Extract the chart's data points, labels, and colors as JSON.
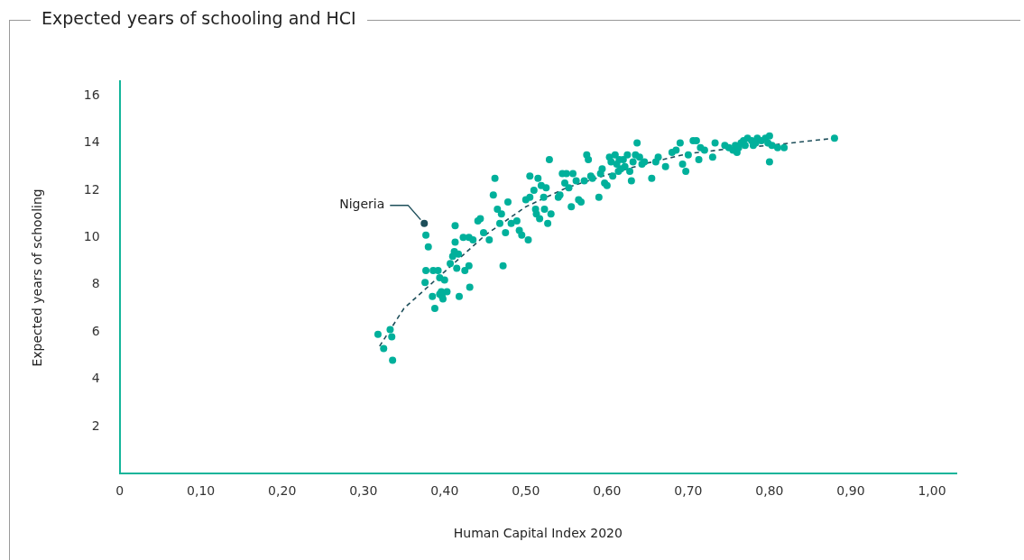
{
  "chart_data": {
    "type": "scatter",
    "title": "Expected years of schooling and HCI",
    "xlabel": "Human Capital Index 2020",
    "ylabel": "Expected years of schooling",
    "xlim": [
      0,
      1.03
    ],
    "ylim": [
      0,
      16.6
    ],
    "xticks": [
      {
        "value": 0,
        "label": "0"
      },
      {
        "value": 0.1,
        "label": "0,10"
      },
      {
        "value": 0.2,
        "label": "0,20"
      },
      {
        "value": 0.3,
        "label": "0,30"
      },
      {
        "value": 0.4,
        "label": "0,40"
      },
      {
        "value": 0.5,
        "label": "0,50"
      },
      {
        "value": 0.6,
        "label": "0,60"
      },
      {
        "value": 0.7,
        "label": "0,70"
      },
      {
        "value": 0.8,
        "label": "0,80"
      },
      {
        "value": 0.9,
        "label": "0,90"
      },
      {
        "value": 1.0,
        "label": "1,00"
      }
    ],
    "yticks": [
      2,
      4,
      6,
      8,
      10,
      12,
      14,
      16
    ],
    "grid": false,
    "legend": false,
    "marker": "circle",
    "annotations": [
      {
        "text": "Nigeria",
        "x": 0.375,
        "y": 10.6
      }
    ],
    "series": [
      {
        "type": "scatter",
        "color": "#00b09b",
        "x": [
          0.318,
          0.325,
          0.333,
          0.335,
          0.336,
          0.377,
          0.38,
          0.377,
          0.376,
          0.386,
          0.385,
          0.388,
          0.392,
          0.394,
          0.394,
          0.397,
          0.398,
          0.4,
          0.396,
          0.403,
          0.407,
          0.41,
          0.412,
          0.413,
          0.413,
          0.415,
          0.417,
          0.418,
          0.423,
          0.425,
          0.43,
          0.43,
          0.431,
          0.435,
          0.441,
          0.444,
          0.448,
          0.455,
          0.46,
          0.462,
          0.465,
          0.468,
          0.47,
          0.472,
          0.475,
          0.478,
          0.482,
          0.489,
          0.492,
          0.495,
          0.5,
          0.503,
          0.505,
          0.505,
          0.51,
          0.512,
          0.513,
          0.515,
          0.517,
          0.519,
          0.522,
          0.523,
          0.525,
          0.527,
          0.529,
          0.531,
          0.54,
          0.542,
          0.545,
          0.548,
          0.55,
          0.553,
          0.556,
          0.558,
          0.562,
          0.565,
          0.568,
          0.572,
          0.575,
          0.577,
          0.58,
          0.582,
          0.59,
          0.592,
          0.594,
          0.597,
          0.6,
          0.603,
          0.605,
          0.607,
          0.61,
          0.612,
          0.614,
          0.615,
          0.617,
          0.62,
          0.622,
          0.625,
          0.628,
          0.63,
          0.632,
          0.635,
          0.637,
          0.64,
          0.643,
          0.646,
          0.655,
          0.66,
          0.663,
          0.672,
          0.68,
          0.685,
          0.69,
          0.693,
          0.697,
          0.7,
          0.706,
          0.71,
          0.713,
          0.715,
          0.72,
          0.73,
          0.733,
          0.745,
          0.75,
          0.755,
          0.758,
          0.76,
          0.762,
          0.765,
          0.768,
          0.77,
          0.773,
          0.778,
          0.78,
          0.783,
          0.785,
          0.79,
          0.795,
          0.798,
          0.8,
          0.8,
          0.803,
          0.81,
          0.818,
          0.88
        ],
        "values": [
          5.9,
          5.3,
          6.1,
          5.8,
          4.8,
          10.1,
          9.6,
          8.6,
          8.1,
          8.6,
          7.5,
          7.0,
          8.6,
          7.6,
          8.3,
          7.5,
          7.4,
          8.2,
          7.7,
          7.7,
          8.9,
          9.2,
          9.4,
          9.8,
          10.5,
          8.7,
          9.3,
          7.5,
          10.0,
          8.6,
          10.0,
          8.8,
          7.9,
          9.9,
          10.7,
          10.8,
          10.2,
          9.9,
          11.8,
          12.5,
          11.2,
          10.6,
          11.0,
          8.8,
          10.2,
          11.5,
          10.6,
          10.7,
          10.3,
          10.1,
          11.6,
          9.9,
          12.6,
          11.7,
          12.0,
          11.2,
          11.0,
          12.5,
          10.8,
          12.2,
          11.7,
          11.2,
          12.1,
          10.6,
          13.3,
          11.0,
          11.7,
          11.8,
          12.7,
          12.3,
          12.7,
          12.1,
          11.3,
          12.7,
          12.4,
          11.6,
          11.5,
          12.4,
          13.5,
          13.3,
          12.6,
          12.5,
          11.7,
          12.7,
          12.9,
          12.3,
          12.2,
          13.4,
          13.2,
          12.6,
          13.5,
          13.1,
          12.8,
          13.3,
          12.9,
          13.3,
          13.0,
          13.5,
          12.8,
          12.4,
          13.2,
          13.5,
          14.0,
          13.4,
          13.1,
          13.2,
          12.5,
          13.2,
          13.4,
          13.0,
          13.6,
          13.7,
          14.0,
          13.1,
          12.8,
          13.5,
          14.1,
          14.1,
          13.3,
          13.8,
          13.7,
          13.4,
          14.0,
          13.9,
          13.8,
          13.7,
          13.9,
          13.6,
          13.8,
          14.0,
          14.1,
          13.9,
          14.2,
          14.1,
          13.9,
          14.0,
          14.2,
          14.1,
          14.2,
          14.0,
          14.3,
          13.2,
          13.9,
          13.8,
          13.8,
          14.2
        ]
      },
      {
        "type": "scatter",
        "color": "#1d4e5a",
        "x": [
          0.375
        ],
        "values": [
          10.6
        ]
      },
      {
        "type": "line",
        "color": "#1d4e5a",
        "line_style": "dashed",
        "marker": "none",
        "x": [
          0.32,
          0.35,
          0.4,
          0.45,
          0.5,
          0.55,
          0.6,
          0.65,
          0.7,
          0.75,
          0.8,
          0.88
        ],
        "values": [
          5.4,
          7.0,
          8.55,
          10.1,
          11.3,
          12.1,
          12.65,
          13.15,
          13.55,
          13.75,
          13.9,
          14.2
        ]
      }
    ]
  }
}
